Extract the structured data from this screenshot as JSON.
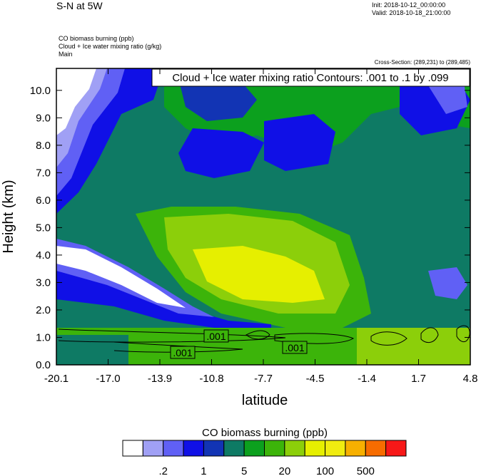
{
  "header": {
    "title_left": "S-N at 5W",
    "init": "Init: 2018-10-12_00:00:00",
    "valid": "Valid: 2018-10-18_21:00:00",
    "fields": [
      "CO biomass burning   (ppb)",
      "Cloud + Ice water mixing ratio   (g/kg)",
      "Main"
    ],
    "cross_section": "Cross-Section: (289,231) to (289,485)"
  },
  "chart_data": {
    "type": "heatmap",
    "title": "Cloud + Ice water mixing ratio Contours: .001 to .1 by .099",
    "xlabel": "latitude",
    "ylabel": "Height (km)",
    "x_ticks": [
      "-20.1",
      "-17.0",
      "-13.9",
      "-10.8",
      "-7.7",
      "-4.5",
      "-1.4",
      "1.7",
      "4.8"
    ],
    "y_ticks": [
      "0.0",
      "1.0",
      "2.0",
      "3.0",
      "4.0",
      "5.0",
      "6.0",
      "7.0",
      "8.0",
      "9.0",
      "10.0"
    ],
    "xlim": [
      -20.1,
      4.8
    ],
    "ylim": [
      0,
      10.8
    ],
    "contour_labels": [
      ".001",
      ".001",
      ".001"
    ],
    "colorbar": {
      "title": "CO biomass burning  (ppb)",
      "colors": [
        "#ffffff",
        "#a0a0f5",
        "#6060f5",
        "#1010e6",
        "#1234b4",
        "#0e7a64",
        "#0ca01e",
        "#3cb40a",
        "#8ccf0a",
        "#e6ef00",
        "#f0ec10",
        "#f7b000",
        "#f76c00",
        "#f71818"
      ],
      "tick_labels": [
        ".2",
        "1",
        "5",
        "20",
        "100",
        "500"
      ]
    }
  }
}
